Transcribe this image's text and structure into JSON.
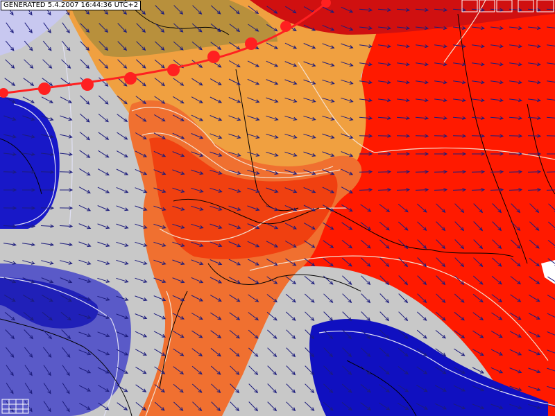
{
  "header": {
    "title": "GENERATED 5.4.2007 16:44:36 UTC+2"
  }
}
